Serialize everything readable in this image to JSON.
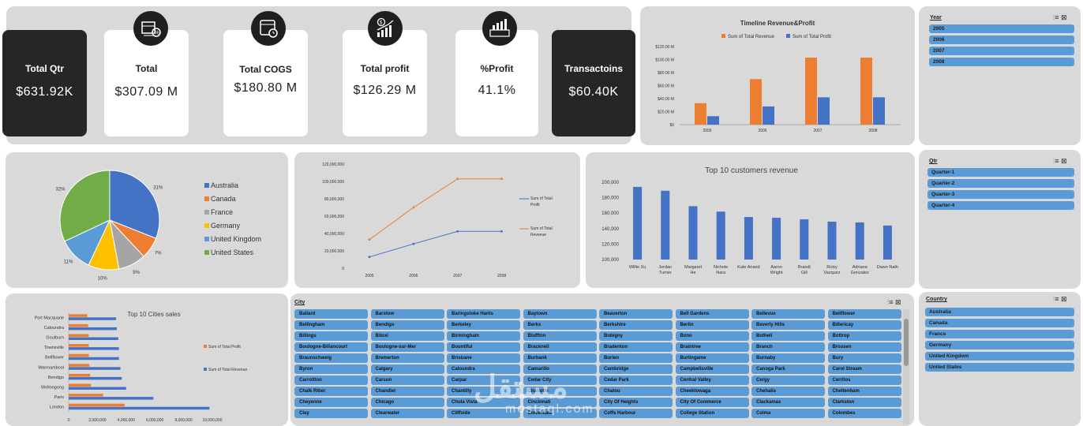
{
  "kpis": [
    {
      "title": "Total Qtr",
      "value": "$631.92K",
      "dark": true
    },
    {
      "title": "Total",
      "value": "$307.09 M",
      "dark": false
    },
    {
      "title": "Total COGS",
      "value": "$180.80 M",
      "dark": false
    },
    {
      "title": "Total profit",
      "value": "$126.29 M",
      "dark": false
    },
    {
      "title": "%Profit",
      "value": "41.1%",
      "dark": false
    },
    {
      "title": "Transactoins",
      "value": "$60.40K",
      "dark": true
    }
  ],
  "icons": [
    "money-box-icon",
    "calendar-clock-icon",
    "growth-chart-icon",
    "profit-badge-icon"
  ],
  "slicers": {
    "year": {
      "title": "Year",
      "items": [
        "2005",
        "2006",
        "2007",
        "2008"
      ]
    },
    "qtr": {
      "title": "Qtr",
      "items": [
        "Quarter-1",
        "Quarter-2",
        "Quarter-3",
        "Quarter-4"
      ]
    },
    "country": {
      "title": "Country",
      "items": [
        "Australia",
        "Canada",
        "France",
        "Germany",
        "United Kingdom",
        "United States"
      ]
    },
    "city": {
      "title": "City",
      "items": [
        "Ballard",
        "Barstow",
        "Baringstoke Hants",
        "Baytown",
        "Beaverton",
        "Bell Gardens",
        "Bellevue",
        "Bellflower",
        "Bellingham",
        "Bendigo",
        "Berkeley",
        "Berks",
        "Berkshire",
        "Berlin",
        "Beverly Hills",
        "Billericay",
        "Billings",
        "Biloxi",
        "Birmingham",
        "Bluffton",
        "Bobigny",
        "Bonn",
        "Bothell",
        "Bottrop",
        "Boulogne-Billancourt",
        "Boulogne-sur-Mer",
        "Bountiful",
        "Bracknell",
        "Bradenton",
        "Braintree",
        "Branch",
        "Brossen",
        "Braunschweig",
        "Bremerton",
        "Brisbane",
        "Burbank",
        "Burien",
        "Burlingame",
        "Burnaby",
        "Bury",
        "Byron",
        "Calgary",
        "Caloundra",
        "Camarillo",
        "Cambridge",
        "Campbellsville",
        "Canoga Park",
        "Carol Stream",
        "Carrollton",
        "Carson",
        "Carpar",
        "Cedar City",
        "Cedar Park",
        "Central Valley",
        "Cergy",
        "Cerritos",
        "Chalk Riber",
        "Chandler",
        "Chantilly",
        "Charlotte",
        "Chatou",
        "Cheektowaga",
        "Chehalis",
        "Cheltenham",
        "Cheyenne",
        "Chicago",
        "Chula Vista",
        "Cincinnati",
        "City Of Heights",
        "City Of Commerce",
        "Clackamas",
        "Clarkston",
        "Clay",
        "Clearwater",
        "Cliffside",
        "Cloverdale",
        "Coffs Harbour",
        "College Station",
        "Colma",
        "Colombes"
      ],
      "tools": "⫶≡ ⊠"
    }
  },
  "watermark": {
    "main": "مستقل",
    "sub": "mostaql.com"
  },
  "chart_data": [
    {
      "type": "bar",
      "title": "Timeline Revenue&Profit",
      "categories": [
        "2005",
        "2006",
        "2007",
        "2008"
      ],
      "series": [
        {
          "name": "Sum of Total Revenue",
          "values": [
            33,
            70,
            103,
            103
          ],
          "color": "#ed7d31"
        },
        {
          "name": "Sum of Total Profit",
          "values": [
            13,
            28,
            42,
            42
          ],
          "color": "#4472c4"
        }
      ],
      "ylim": [
        0,
        120
      ],
      "yticks": [
        "$0",
        "$20.00 M",
        "$40.00 M",
        "$60.00 M",
        "$80.00 M",
        "$100.00 M",
        "$120.00 M"
      ],
      "legend": "top"
    },
    {
      "type": "pie",
      "labels": [
        "Australia",
        "Canada",
        "France",
        "Germany",
        "United Kingdom",
        "United States"
      ],
      "values": [
        31,
        7,
        9,
        10,
        11,
        32
      ],
      "value_labels": [
        "31%",
        "7%",
        "9%",
        "10%",
        "11%",
        "32%"
      ],
      "colors": [
        "#4472c4",
        "#ed7d31",
        "#a5a5a5",
        "#ffc000",
        "#5b9bd5",
        "#70ad47"
      ],
      "legend": "right"
    },
    {
      "type": "line",
      "categories": [
        "2005",
        "2006",
        "2007",
        "2008"
      ],
      "series": [
        {
          "name": "Sum of Total Profit",
          "values": [
            13000000,
            28000000,
            42500000,
            42500000
          ],
          "color": "#4472c4"
        },
        {
          "name": "Sum of Total Revenue",
          "values": [
            33000000,
            70000000,
            103000000,
            103000000
          ],
          "color": "#ed7d31"
        }
      ],
      "ylim": [
        0,
        120000000
      ],
      "yticks": [
        "0",
        "20,000,000",
        "40,000,000",
        "60,000,000",
        "80,000,000",
        "100,000,000",
        "120,000,000"
      ],
      "legend": "right"
    },
    {
      "type": "bar",
      "title": "Top 10 customers revenue",
      "categories": [
        "Willie Xu",
        "Jordan Turner",
        "Margaret He",
        "Nichole Nara",
        "Kate Anand",
        "Aaron Wright",
        "Brandi Gill",
        "Ricky Vazquez",
        "Adriana Gonzalez",
        "Dawn Nath"
      ],
      "values": [
        194000,
        189000,
        169000,
        162000,
        155000,
        154000,
        152000,
        149000,
        148000,
        144000
      ],
      "ylim": [
        100000,
        200000
      ],
      "yticks": [
        "100,000",
        "120,000",
        "140,000",
        "160,000",
        "180,000",
        "200,000"
      ],
      "color": "#4472c4"
    },
    {
      "type": "bar",
      "orientation": "horizontal",
      "title": "Top 10 Cities sales",
      "categories": [
        "Port Macquarie",
        "Caloundra",
        "Goulburn",
        "Townsville",
        "Bellflower",
        "Warrnambool",
        "Bendigo",
        "Wollongong",
        "Paris",
        "London"
      ],
      "series": [
        {
          "name": "Sum of Total Profit",
          "values": [
            1300000,
            1350000,
            1400000,
            1400000,
            1400000,
            1450000,
            1500000,
            1550000,
            2400000,
            3900000
          ],
          "color": "#ed7d31"
        },
        {
          "name": "Sum of Total Revenue",
          "values": [
            3300000,
            3350000,
            3450000,
            3500000,
            3500000,
            3600000,
            3700000,
            4000000,
            5900000,
            9800000
          ],
          "color": "#4472c4"
        }
      ],
      "xlim": [
        0,
        10000000
      ],
      "xticks": [
        "0",
        "2,000,000",
        "4,000,000",
        "6,000,000",
        "8,000,000",
        "10,000,000"
      ],
      "legend": "right"
    }
  ]
}
